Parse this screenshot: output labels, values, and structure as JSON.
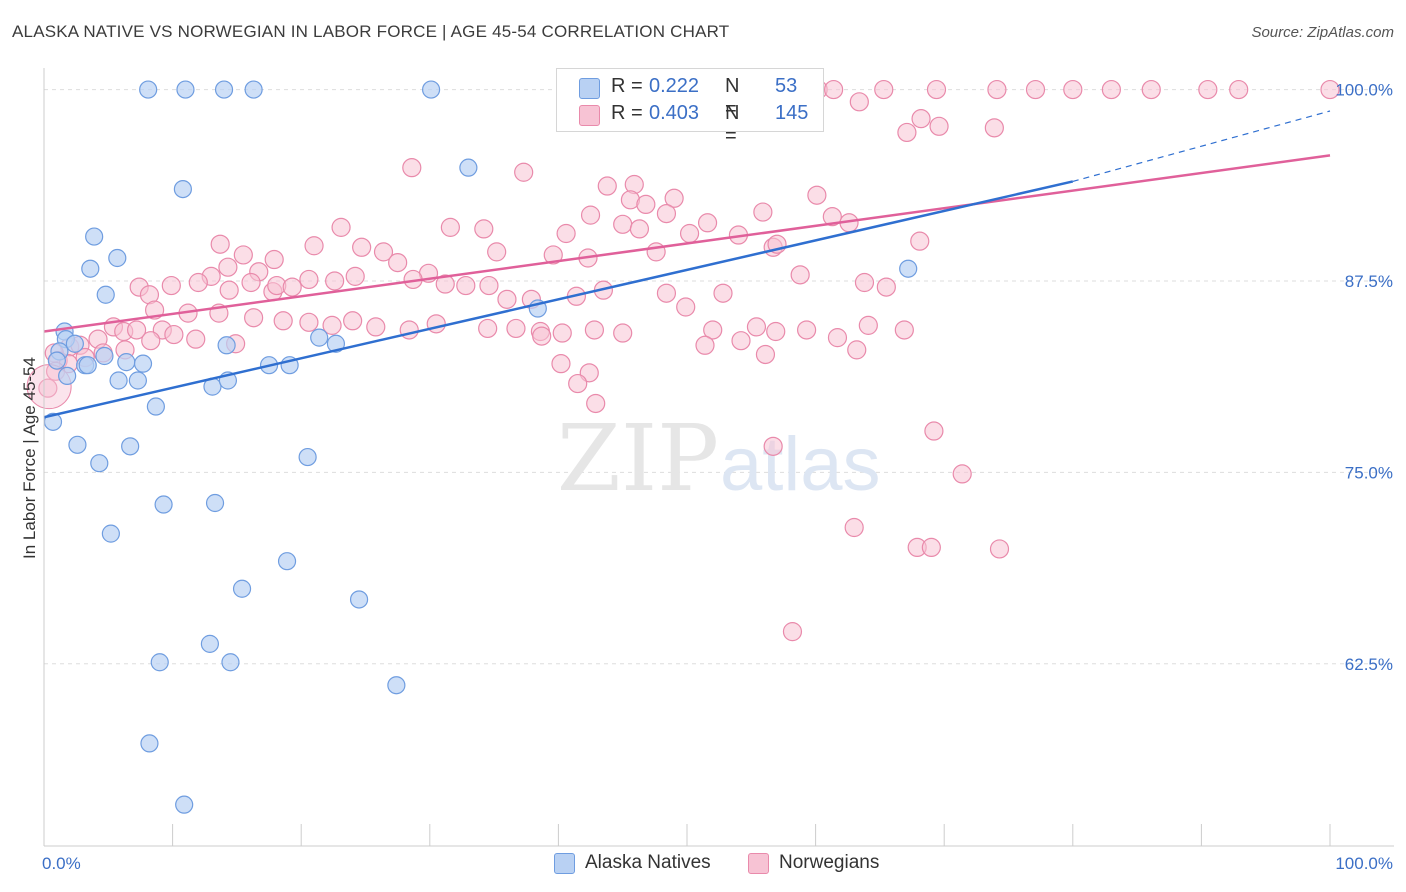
{
  "title": "ALASKA NATIVE VS NORWEGIAN IN LABOR FORCE | AGE 45-54 CORRELATION CHART",
  "source": "Source: ZipAtlas.com",
  "watermark": {
    "zip": "ZIP",
    "atlas": "atlas"
  },
  "legend_top": {
    "rows": [
      {
        "r_label": "R =",
        "r_value": "0.222",
        "n_label": "N =",
        "n_value": "53"
      },
      {
        "r_label": "R =",
        "r_value": "0.403",
        "n_label": "N =",
        "n_value": "145"
      }
    ]
  },
  "legend_bottom": {
    "items": [
      "Alaska Natives",
      "Norwegians"
    ]
  },
  "colors": {
    "blue_fill": "#b9d1f3",
    "blue_stroke": "#6f9de0",
    "blue_line": "#2f6fd0",
    "pink_fill": "#f7c3d4",
    "pink_stroke": "#e98aab",
    "pink_line": "#e0609a",
    "tick_label": "#3b6fc6",
    "grid": "#dddddd"
  },
  "chart_data": {
    "type": "scatter",
    "title": "ALASKA NATIVE VS NORWEGIAN IN LABOR FORCE | AGE 45-54 CORRELATION CHART",
    "xlabel": "",
    "ylabel": "In Labor Force | Age 45-54",
    "xlim": [
      0,
      100
    ],
    "ylim": [
      50.6,
      101.8
    ],
    "x_tick_labels": [
      "0.0%",
      "100.0%"
    ],
    "y_ticks": [
      62.5,
      75.0,
      87.5,
      100.0
    ],
    "y_tick_labels": [
      "62.5%",
      "75.0%",
      "87.5%",
      "100.0%"
    ],
    "grid": "horizontal dashed",
    "legend_position": "bottom",
    "series": [
      {
        "name": "Alaska Natives",
        "R": 0.222,
        "N": 53,
        "trend": {
          "x": [
            0,
            80
          ],
          "y": [
            78.6,
            94.0
          ],
          "dashed_extension": {
            "x": [
              80,
              100
            ],
            "y": [
              94.0,
              98.6
            ]
          }
        },
        "points": [
          [
            8.1,
            100
          ],
          [
            11.0,
            100
          ],
          [
            14.0,
            100
          ],
          [
            16.3,
            100
          ],
          [
            30.1,
            100
          ],
          [
            44.3,
            100
          ],
          [
            10.8,
            93.5
          ],
          [
            33.0,
            94.9
          ],
          [
            3.9,
            90.4
          ],
          [
            5.7,
            89.0
          ],
          [
            3.6,
            88.3
          ],
          [
            4.8,
            86.6
          ],
          [
            67.2,
            88.3
          ],
          [
            38.4,
            85.7
          ],
          [
            1.6,
            84.2
          ],
          [
            1.7,
            83.7
          ],
          [
            1.2,
            82.9
          ],
          [
            1.0,
            82.3
          ],
          [
            2.4,
            83.4
          ],
          [
            3.2,
            82.0
          ],
          [
            3.4,
            82.0
          ],
          [
            4.7,
            82.6
          ],
          [
            6.4,
            82.2
          ],
          [
            7.7,
            82.1
          ],
          [
            1.8,
            81.3
          ],
          [
            5.8,
            81.0
          ],
          [
            7.3,
            81.0
          ],
          [
            14.2,
            83.3
          ],
          [
            21.4,
            83.8
          ],
          [
            22.7,
            83.4
          ],
          [
            17.5,
            82.0
          ],
          [
            19.1,
            82.0
          ],
          [
            13.1,
            80.6
          ],
          [
            14.3,
            81.0
          ],
          [
            8.7,
            79.3
          ],
          [
            0.7,
            78.3
          ],
          [
            2.6,
            76.8
          ],
          [
            4.3,
            75.6
          ],
          [
            6.7,
            76.7
          ],
          [
            20.5,
            76.0
          ],
          [
            9.3,
            72.9
          ],
          [
            13.3,
            73.0
          ],
          [
            5.2,
            71.0
          ],
          [
            18.9,
            69.2
          ],
          [
            15.4,
            67.4
          ],
          [
            24.5,
            66.7
          ],
          [
            12.9,
            63.8
          ],
          [
            9.0,
            62.6
          ],
          [
            14.5,
            62.6
          ],
          [
            27.4,
            61.1
          ],
          [
            8.2,
            57.3
          ],
          [
            10.9,
            53.3
          ],
          [
            44.8,
            100
          ]
        ]
      },
      {
        "name": "Norwegians",
        "R": 0.403,
        "N": 145,
        "trend": {
          "x": [
            0,
            100
          ],
          "y": [
            84.2,
            95.7
          ]
        },
        "points": [
          [
            60.2,
            100
          ],
          [
            61.4,
            100
          ],
          [
            65.3,
            100
          ],
          [
            69.4,
            100
          ],
          [
            74.1,
            100
          ],
          [
            77.1,
            100
          ],
          [
            80.0,
            100
          ],
          [
            83.0,
            100
          ],
          [
            86.1,
            100
          ],
          [
            90.5,
            100
          ],
          [
            92.9,
            100
          ],
          [
            100.0,
            100
          ],
          [
            55.1,
            99.7
          ],
          [
            57.0,
            99.8
          ],
          [
            63.4,
            99.2
          ],
          [
            68.2,
            98.1
          ],
          [
            69.6,
            97.6
          ],
          [
            73.9,
            97.5
          ],
          [
            67.1,
            97.2
          ],
          [
            28.6,
            94.9
          ],
          [
            37.3,
            94.6
          ],
          [
            43.8,
            93.7
          ],
          [
            45.9,
            93.8
          ],
          [
            60.1,
            93.1
          ],
          [
            45.6,
            92.8
          ],
          [
            49.0,
            92.9
          ],
          [
            46.8,
            92.5
          ],
          [
            48.4,
            91.9
          ],
          [
            42.5,
            91.8
          ],
          [
            45.0,
            91.2
          ],
          [
            46.3,
            90.9
          ],
          [
            55.9,
            92.0
          ],
          [
            61.3,
            91.7
          ],
          [
            62.6,
            91.3
          ],
          [
            51.6,
            91.3
          ],
          [
            23.1,
            91.0
          ],
          [
            31.6,
            91.0
          ],
          [
            34.2,
            90.9
          ],
          [
            40.6,
            90.6
          ],
          [
            50.2,
            90.6
          ],
          [
            54.0,
            90.5
          ],
          [
            56.7,
            89.7
          ],
          [
            57.0,
            89.9
          ],
          [
            68.1,
            90.1
          ],
          [
            13.7,
            89.9
          ],
          [
            21.0,
            89.8
          ],
          [
            24.7,
            89.7
          ],
          [
            26.4,
            89.4
          ],
          [
            35.2,
            89.4
          ],
          [
            39.6,
            89.2
          ],
          [
            42.3,
            89.0
          ],
          [
            47.6,
            89.4
          ],
          [
            15.5,
            89.2
          ],
          [
            17.9,
            88.9
          ],
          [
            14.3,
            88.4
          ],
          [
            16.7,
            88.1
          ],
          [
            13.0,
            87.8
          ],
          [
            12.0,
            87.4
          ],
          [
            9.9,
            87.2
          ],
          [
            7.4,
            87.1
          ],
          [
            14.4,
            86.9
          ],
          [
            16.1,
            87.4
          ],
          [
            17.8,
            86.8
          ],
          [
            18.1,
            87.2
          ],
          [
            19.3,
            87.1
          ],
          [
            20.6,
            87.6
          ],
          [
            22.6,
            87.5
          ],
          [
            24.2,
            87.8
          ],
          [
            27.5,
            88.7
          ],
          [
            29.9,
            88.0
          ],
          [
            31.2,
            87.3
          ],
          [
            32.8,
            87.2
          ],
          [
            34.6,
            87.2
          ],
          [
            36.0,
            86.3
          ],
          [
            37.9,
            86.3
          ],
          [
            28.7,
            87.6
          ],
          [
            41.4,
            86.5
          ],
          [
            43.5,
            86.9
          ],
          [
            48.4,
            86.7
          ],
          [
            49.9,
            85.8
          ],
          [
            52.8,
            86.7
          ],
          [
            58.8,
            87.9
          ],
          [
            63.8,
            87.4
          ],
          [
            65.5,
            87.1
          ],
          [
            8.2,
            86.6
          ],
          [
            8.6,
            85.6
          ],
          [
            11.2,
            85.4
          ],
          [
            13.6,
            85.4
          ],
          [
            16.3,
            85.1
          ],
          [
            18.6,
            84.9
          ],
          [
            20.6,
            84.8
          ],
          [
            22.4,
            84.6
          ],
          [
            24.0,
            84.9
          ],
          [
            25.8,
            84.5
          ],
          [
            28.4,
            84.3
          ],
          [
            30.5,
            84.7
          ],
          [
            34.5,
            84.4
          ],
          [
            36.7,
            84.4
          ],
          [
            38.6,
            84.2
          ],
          [
            40.3,
            84.1
          ],
          [
            42.8,
            84.3
          ],
          [
            45.0,
            84.1
          ],
          [
            52.0,
            84.3
          ],
          [
            55.4,
            84.5
          ],
          [
            56.9,
            84.2
          ],
          [
            59.3,
            84.3
          ],
          [
            64.1,
            84.6
          ],
          [
            5.4,
            84.5
          ],
          [
            6.2,
            84.2
          ],
          [
            7.2,
            84.3
          ],
          [
            9.2,
            84.3
          ],
          [
            10.1,
            84.0
          ],
          [
            11.8,
            83.7
          ],
          [
            14.9,
            83.4
          ],
          [
            2.0,
            83.2
          ],
          [
            2.8,
            83.3
          ],
          [
            4.2,
            83.7
          ],
          [
            4.6,
            82.8
          ],
          [
            6.3,
            83.0
          ],
          [
            8.3,
            83.6
          ],
          [
            0.8,
            82.8
          ],
          [
            1.1,
            82.3
          ],
          [
            1.9,
            82.1
          ],
          [
            3.2,
            82.5
          ],
          [
            0.3,
            80.5
          ],
          [
            0.9,
            81.6
          ],
          [
            38.7,
            83.9
          ],
          [
            51.4,
            83.3
          ],
          [
            54.2,
            83.6
          ],
          [
            56.1,
            82.7
          ],
          [
            61.7,
            83.8
          ],
          [
            63.2,
            83.0
          ],
          [
            66.9,
            84.3
          ],
          [
            40.2,
            82.1
          ],
          [
            42.4,
            81.5
          ],
          [
            41.5,
            80.8
          ],
          [
            42.9,
            79.5
          ],
          [
            69.2,
            77.7
          ],
          [
            71.4,
            74.9
          ],
          [
            56.7,
            76.7
          ],
          [
            63.0,
            71.4
          ],
          [
            74.3,
            70.0
          ],
          [
            67.9,
            70.1
          ],
          [
            69.0,
            70.1
          ],
          [
            58.2,
            64.6
          ]
        ]
      }
    ]
  }
}
